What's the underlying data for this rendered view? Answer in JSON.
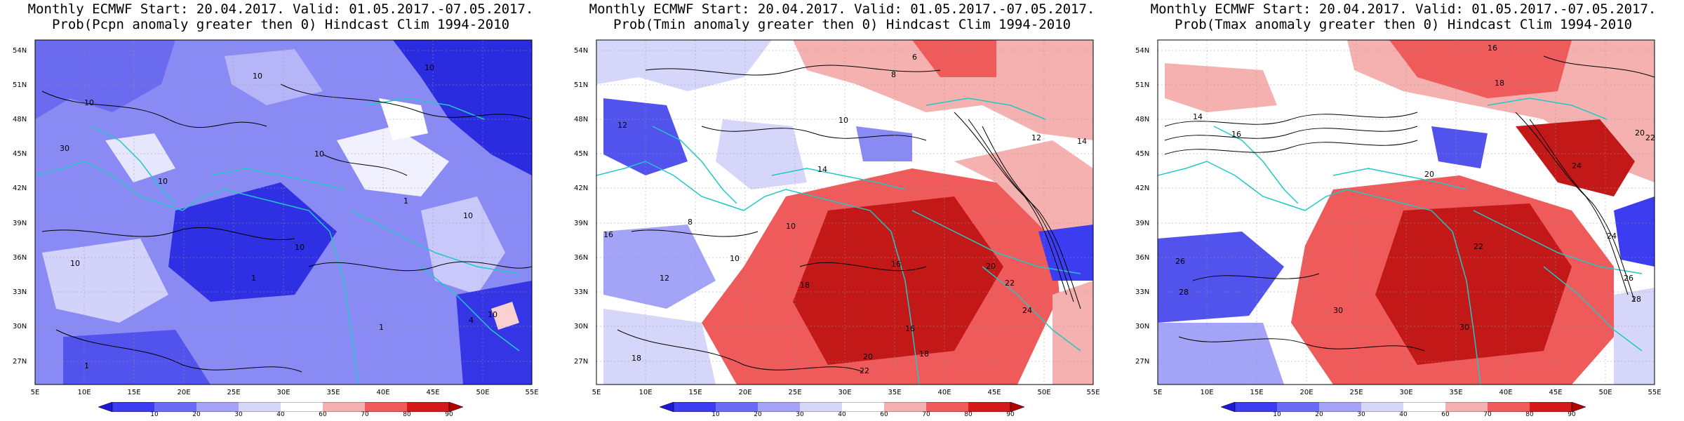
{
  "panels": [
    {
      "title_line1": "Monthly ECMWF Start: 20.04.2017. Valid: 01.05.2017.-07.05.2017.",
      "title_line2": "Prob(Pcpn anomaly greater then 0) Hindcast Clim 1994-2010",
      "contour_labels": [
        "10",
        "30",
        "10",
        "10",
        "10",
        "10",
        "10",
        "10",
        "10",
        "1",
        "10",
        "1",
        "1",
        "1",
        "4"
      ]
    },
    {
      "title_line1": "Monthly ECMWF Start: 20.04.2017. Valid: 01.05.2017.-07.05.2017.",
      "title_line2": "Prob(Tmin anomaly greater then 0) Hindcast Clim 1994-2010",
      "contour_labels": [
        "6",
        "8",
        "10",
        "12",
        "12",
        "10",
        "8",
        "14",
        "16",
        "12",
        "10",
        "16",
        "18",
        "20",
        "22",
        "16",
        "18",
        "20",
        "22",
        "24",
        "14",
        "18"
      ]
    },
    {
      "title_line1": "Monthly ECMWF Start: 20.04.2017. Valid: 01.05.2017.-07.05.2017.",
      "title_line2": "Prob(Tmax anomaly greater then 0) Hindcast Clim 1994-2010",
      "contour_labels": [
        "16",
        "18",
        "14",
        "16",
        "20",
        "22",
        "24",
        "20",
        "26",
        "28",
        "30",
        "22",
        "24",
        "26",
        "28",
        "30"
      ]
    }
  ],
  "axes": {
    "lat_labels": [
      "54N",
      "51N",
      "48N",
      "45N",
      "42N",
      "39N",
      "36N",
      "33N",
      "30N",
      "27N"
    ],
    "lon_labels": [
      "5E",
      "10E",
      "15E",
      "20E",
      "25E",
      "30E",
      "35E",
      "40E",
      "45E",
      "50E",
      "55E"
    ]
  },
  "colorbar": {
    "ticks": [
      "10",
      "20",
      "30",
      "40",
      "60",
      "70",
      "80",
      "90"
    ],
    "colors": [
      "#1a1ad6",
      "#3c3cf0",
      "#6b6bf5",
      "#a3a3f8",
      "#d6d6fb",
      "#ffffff",
      "#fbd0d0",
      "#f59a9a",
      "#ef5a5a",
      "#d61a1a"
    ]
  },
  "map_colors": {
    "coast": "#22c7c7",
    "contour": "#000000",
    "grid": "#999999"
  }
}
